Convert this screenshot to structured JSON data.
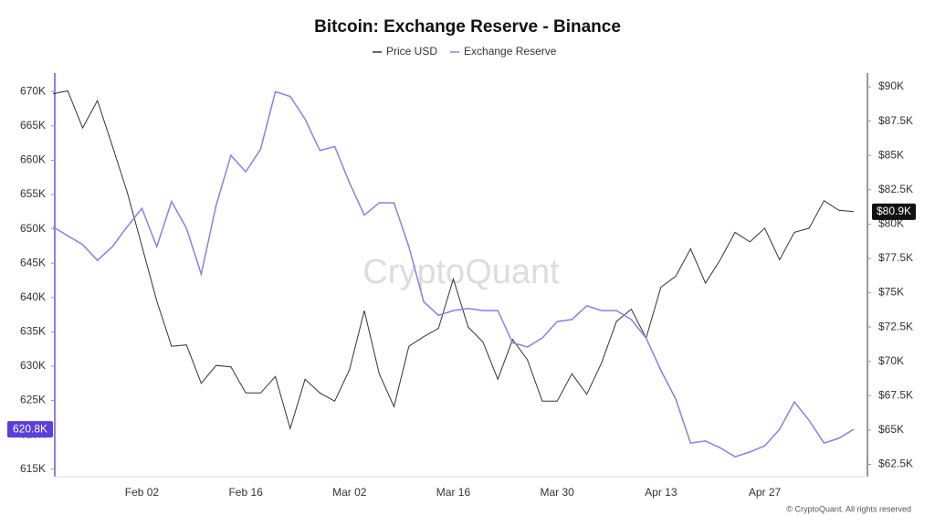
{
  "chart_data": {
    "type": "line",
    "title": "Bitcoin: Exchange Reserve - Binance",
    "watermark": "CryptoQuant",
    "footer": "© CryptoQuant. All rights reserved",
    "categories": [
      null,
      null,
      null,
      null,
      null,
      null,
      "Feb 02",
      null,
      null,
      null,
      null,
      null,
      null,
      "Feb 16",
      null,
      null,
      null,
      null,
      null,
      null,
      "Mar 02",
      null,
      null,
      null,
      null,
      null,
      null,
      "Mar 16",
      null,
      null,
      null,
      null,
      null,
      null,
      "Mar 30",
      null,
      null,
      null,
      null,
      null,
      null,
      "Apr 13",
      null,
      null,
      null,
      null,
      null,
      null,
      "Apr 27",
      null,
      null,
      null,
      null,
      null,
      null
    ],
    "series": [
      {
        "name": "Price USD",
        "color": "#333333",
        "axis": "y2",
        "end_label": "$80.9K",
        "values": [
          89500,
          89700,
          87000,
          89000,
          85700,
          82350,
          78400,
          74400,
          71100,
          71200,
          68400,
          69700,
          69600,
          67700,
          67700,
          68900,
          65100,
          68700,
          67700,
          67100,
          69400,
          73700,
          69100,
          66700,
          71100,
          71800,
          72400,
          76000,
          72500,
          71400,
          68700,
          71600,
          70100,
          67100,
          67100,
          69100,
          67600,
          69900,
          72900,
          73800,
          71700,
          75400,
          76200,
          78200,
          75700,
          77400,
          79400,
          78700,
          79700,
          77400,
          79400,
          79700,
          81700,
          81000,
          80900
        ]
      },
      {
        "name": "Exchange Reserve",
        "color": "#8b7fe8",
        "axis": "y",
        "end_label": "620.8K",
        "values": [
          650300,
          649000,
          647700,
          645400,
          647400,
          650300,
          653000,
          647400,
          654000,
          650100,
          643400,
          653400,
          660700,
          658300,
          661600,
          670000,
          669300,
          666000,
          661400,
          662000,
          656700,
          652000,
          653800,
          653800,
          647400,
          639400,
          637400,
          638100,
          638400,
          638100,
          638100,
          633400,
          632800,
          634100,
          636500,
          636800,
          638800,
          638100,
          638100,
          636800,
          634100,
          629400,
          625200,
          618800,
          619100,
          618100,
          616800,
          617500,
          618400,
          620800,
          624800,
          622100,
          618800,
          619500,
          620800
        ]
      }
    ],
    "ylim": [
      613900,
      672700
    ],
    "yticks": [
      {
        "value": 615000,
        "label": "615K"
      },
      {
        "value": 620000,
        "label": "620K"
      },
      {
        "value": 625000,
        "label": "625K"
      },
      {
        "value": 630000,
        "label": "630K"
      },
      {
        "value": 635000,
        "label": "635K"
      },
      {
        "value": 640000,
        "label": "640K"
      },
      {
        "value": 645000,
        "label": "645K"
      },
      {
        "value": 650000,
        "label": "650K"
      },
      {
        "value": 655000,
        "label": "655K"
      },
      {
        "value": 660000,
        "label": "660K"
      },
      {
        "value": 665000,
        "label": "665K"
      },
      {
        "value": 670000,
        "label": "670K"
      }
    ],
    "y2lim": [
      61600,
      91000
    ],
    "y2ticks": [
      {
        "value": 62500,
        "label": "$62.5K"
      },
      {
        "value": 65000,
        "label": "$65K"
      },
      {
        "value": 67500,
        "label": "$67.5K"
      },
      {
        "value": 70000,
        "label": "$70K"
      },
      {
        "value": 72500,
        "label": "$72.5K"
      },
      {
        "value": 75000,
        "label": "$75K"
      },
      {
        "value": 77500,
        "label": "$77.5K"
      },
      {
        "value": 80000,
        "label": "$80K"
      },
      {
        "value": 82500,
        "label": "$82.5K"
      },
      {
        "value": 85000,
        "label": "$85K"
      },
      {
        "value": 87500,
        "label": "$87.5K"
      },
      {
        "value": 90000,
        "label": "$90K"
      }
    ],
    "grid": false
  }
}
